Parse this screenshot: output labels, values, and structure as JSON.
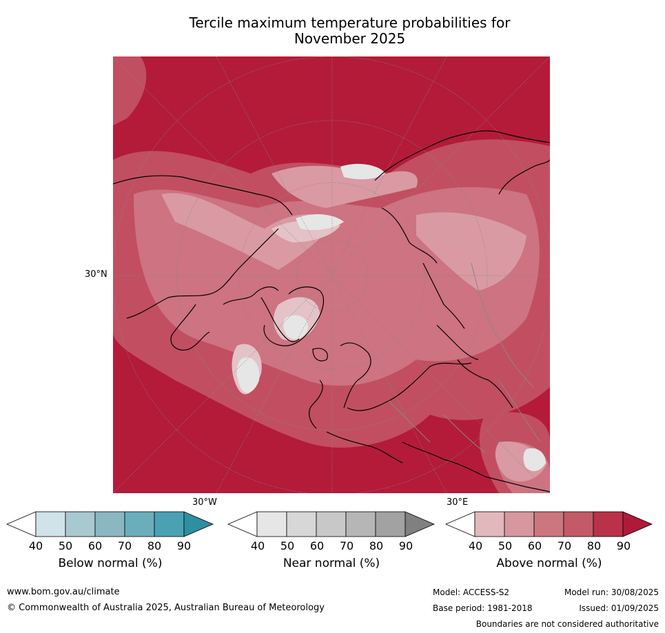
{
  "title_line1": "Tercile maximum temperature probabilities for",
  "title_line2": "November 2025",
  "map": {
    "lat_label": "30°N",
    "lon_label_left": "30°W",
    "lon_label_right": "30°E"
  },
  "colorbars": [
    {
      "label": "Below normal (%)",
      "ticks": [
        "40",
        "50",
        "60",
        "70",
        "80",
        "90"
      ],
      "under_color": "#ffffff",
      "colors": [
        "#cfe3e9",
        "#a8c9d0",
        "#8ab7c2",
        "#6aaebc",
        "#4aa1b3"
      ],
      "over_color": "#2f8ea1"
    },
    {
      "label": "Near normal (%)",
      "ticks": [
        "40",
        "50",
        "60",
        "70",
        "80",
        "90"
      ],
      "under_color": "#ffffff",
      "colors": [
        "#e6e6e6",
        "#d7d7d7",
        "#c8c8c8",
        "#b6b6b6",
        "#a2a2a2"
      ],
      "over_color": "#808080"
    },
    {
      "label": "Above normal (%)",
      "ticks": [
        "40",
        "50",
        "60",
        "70",
        "80",
        "90"
      ],
      "under_color": "#ffffff",
      "colors": [
        "#e3b8bd",
        "#d6979f",
        "#cc7680",
        "#c45a68",
        "#ba3249"
      ],
      "over_color": "#b01a38"
    }
  ],
  "footer": {
    "website": "www.bom.gov.au/climate",
    "copyright": "© Commonwealth of Australia 2025, Australian Bureau of Meteorology",
    "model": "Model: ACCESS-S2",
    "model_run": "Model run: 30/08/2025",
    "base_period": "Base period: 1981-2018",
    "issued": "Issued: 01/09/2025",
    "disclaimer": "Boundaries are not considered authoritative"
  }
}
